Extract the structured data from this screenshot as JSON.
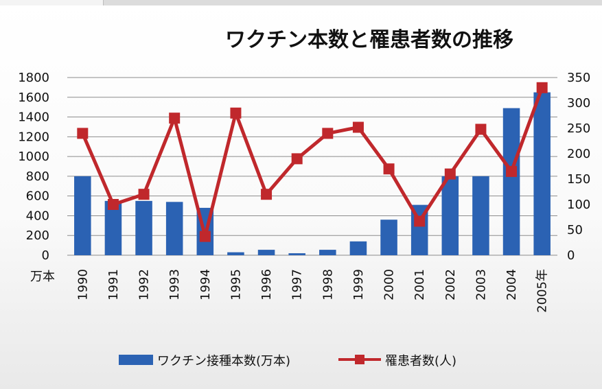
{
  "chart_data": {
    "type": "bar+line",
    "title": "ワクチン本数と罹患者数の推移",
    "categories": [
      "1990",
      "1991",
      "1992",
      "1993",
      "1994",
      "1995",
      "1996",
      "1997",
      "1998",
      "1999",
      "2000",
      "2001",
      "2002",
      "2003",
      "2004",
      "2005年"
    ],
    "y_left": {
      "unit_label": "万本",
      "ylim": [
        0,
        1800
      ],
      "ticks": [
        0,
        200,
        400,
        600,
        800,
        1000,
        1200,
        1400,
        1600,
        1800
      ]
    },
    "y_right": {
      "ylim": [
        0,
        350
      ],
      "ticks": [
        0,
        50,
        100,
        150,
        200,
        250,
        300,
        350
      ]
    },
    "series": [
      {
        "name": "ワクチン接種本数(万本)",
        "type": "bar",
        "axis": "left",
        "color": "#2b62b3",
        "values": [
          800,
          550,
          550,
          540,
          480,
          30,
          55,
          20,
          55,
          140,
          360,
          510,
          800,
          800,
          1490,
          1650
        ]
      },
      {
        "name": "罹患者数(人)",
        "type": "line",
        "axis": "right",
        "color": "#c0282c",
        "values": [
          240,
          100,
          120,
          270,
          37,
          280,
          120,
          190,
          240,
          252,
          170,
          67,
          160,
          248,
          165,
          330
        ]
      }
    ],
    "grid": true,
    "legend_position": "bottom"
  }
}
